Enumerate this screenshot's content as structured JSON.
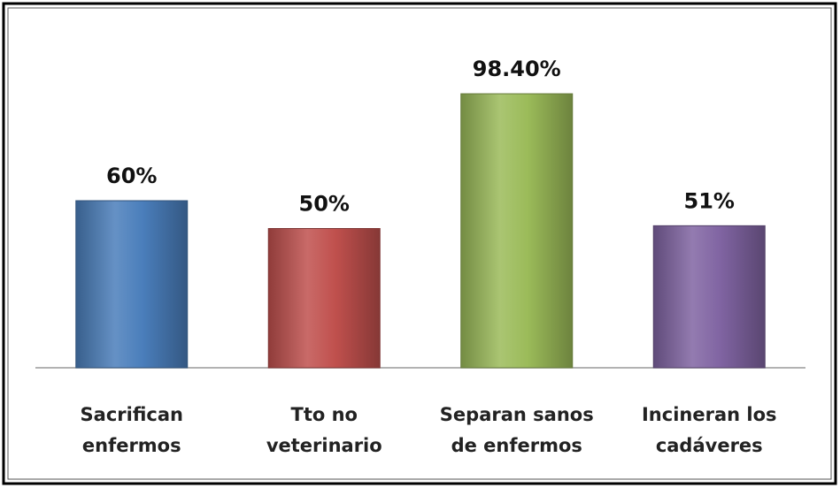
{
  "chart_data": {
    "type": "bar",
    "categories": [
      "Sacrifican\nenfermos",
      "Tto no\nveterinario",
      "Separan sanos\nde enfermos",
      "Incineran los\ncadáveres"
    ],
    "values": [
      60,
      50,
      98.4,
      51
    ],
    "value_labels": [
      "60%",
      "50%",
      "98.40%",
      "51%"
    ],
    "colors": [
      "#4a7ebb",
      "#c0504d",
      "#9bbb59",
      "#8064a2"
    ]
  }
}
